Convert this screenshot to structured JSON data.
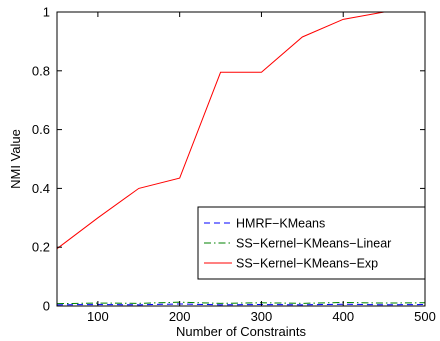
{
  "chart_data": {
    "type": "line",
    "title": "",
    "xlabel": "Number of Constraints",
    "ylabel": "NMI Value",
    "xlim": [
      50,
      500
    ],
    "ylim": [
      0,
      1
    ],
    "xticks": [
      100,
      200,
      300,
      400,
      500
    ],
    "yticks": [
      0,
      0.2,
      0.4,
      0.6,
      0.8,
      1
    ],
    "ytick_labels": [
      "0",
      "0.2",
      "0.4",
      "0.6",
      "0.8",
      "1"
    ],
    "grid": false,
    "legend_position": "bottom-right",
    "x": [
      50,
      100,
      150,
      200,
      250,
      300,
      350,
      400,
      450,
      500
    ],
    "series": [
      {
        "name": "HMRF−KMeans",
        "color": "#0000ff",
        "style": "dashed",
        "values": [
          0.004,
          0.005,
          0.004,
          0.007,
          0.004,
          0.005,
          0.004,
          0.006,
          0.004,
          0.005
        ]
      },
      {
        "name": "SS−Kernel−KMeans−Linear",
        "color": "#008000",
        "style": "dashdot",
        "values": [
          0.008,
          0.01,
          0.009,
          0.013,
          0.009,
          0.011,
          0.009,
          0.012,
          0.01,
          0.011
        ]
      },
      {
        "name": "SS−Kernel−KMeans−Exp",
        "color": "#ff0000",
        "style": "solid",
        "values": [
          0.195,
          0.3,
          0.4,
          0.435,
          0.795,
          0.795,
          0.915,
          0.975,
          1.0,
          1.0
        ]
      }
    ]
  }
}
